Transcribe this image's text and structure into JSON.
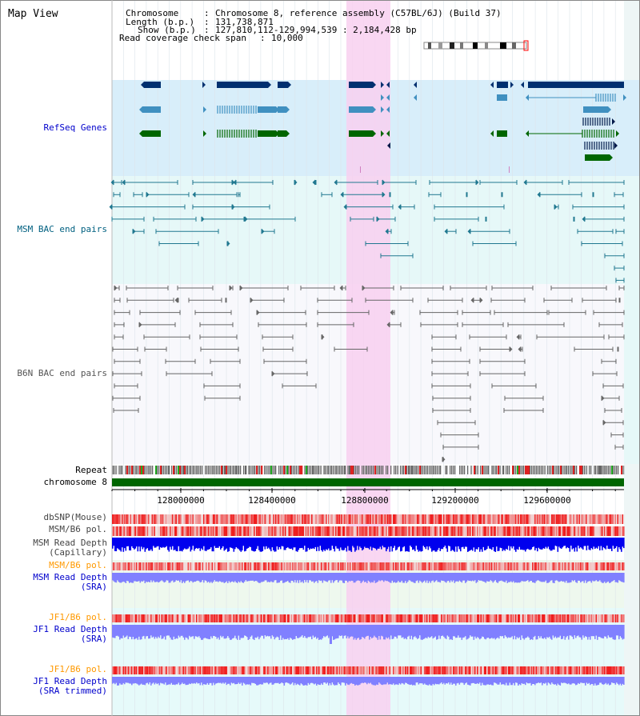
{
  "title": "Map View",
  "header": {
    "rows": [
      {
        "key": "Chromosome",
        "value": "Chromosome 8, reference assembly (C57BL/6J) (Build 37)"
      },
      {
        "key": "Length (b.p.)",
        "value": "131,738,871"
      },
      {
        "key": "Show (b.p.)",
        "value": "127,810,112-129,994,539 : 2,184,428 bp"
      },
      {
        "key": "Read coverage check span",
        "value": "10,000"
      }
    ]
  },
  "tracks": {
    "refseq": {
      "label": "RefSeq Genes",
      "color": "#0000cc"
    },
    "msm_bac": {
      "label": "MSM BAC end pairs",
      "color": "#006080"
    },
    "b6n_bac": {
      "label": "B6N BAC end pairs",
      "color": "#555555"
    },
    "repeat": {
      "label": "Repeat",
      "color": "#000000"
    },
    "chromosome": {
      "label": "chromosome 8",
      "color": "#000000"
    },
    "dbsnp": {
      "label": "dbSNP(Mouse)",
      "color": "#444444"
    },
    "msm_b6_pol": {
      "label": "MSM/B6 pol.",
      "color": "#444444"
    },
    "msm_depth_cap": {
      "label": "MSM Read Depth\n(Capillary)",
      "color": "#444444"
    },
    "msm_b6_pol2": {
      "label": "MSM/B6 pol.",
      "color": "#ff9900"
    },
    "msm_depth_sra": {
      "label": "MSM Read Depth\n(SRA)",
      "color": "#0000cc"
    },
    "jf1_b6_pol": {
      "label": "JF1/B6 pol.",
      "color": "#ff9900"
    },
    "jf1_depth_sra": {
      "label": "JF1 Read Depth\n(SRA)",
      "color": "#0000cc"
    },
    "jf1_b6_pol2": {
      "label": "JF1/B6 pol.",
      "color": "#ff9900"
    },
    "jf1_depth_trim": {
      "label": "JF1 Read Depth\n(SRA trimmed)",
      "color": "#0000cc"
    }
  },
  "axis": {
    "ticks": [
      "128000000",
      "128400000",
      "128800000",
      "129200000",
      "129600000"
    ]
  },
  "colors": {
    "refseq_bg": "#d8eefa",
    "bac_bg": "#e6f8f8",
    "highlight": "#f8d0f0",
    "chromosome_bar": "#006600",
    "gene_dark": "#003070",
    "gene_mid": "#4090c0",
    "gene_green": "#006600",
    "snp_red": "#ee2222",
    "depth_blue": "#0000ee",
    "depth_light": "#8080ff"
  }
}
